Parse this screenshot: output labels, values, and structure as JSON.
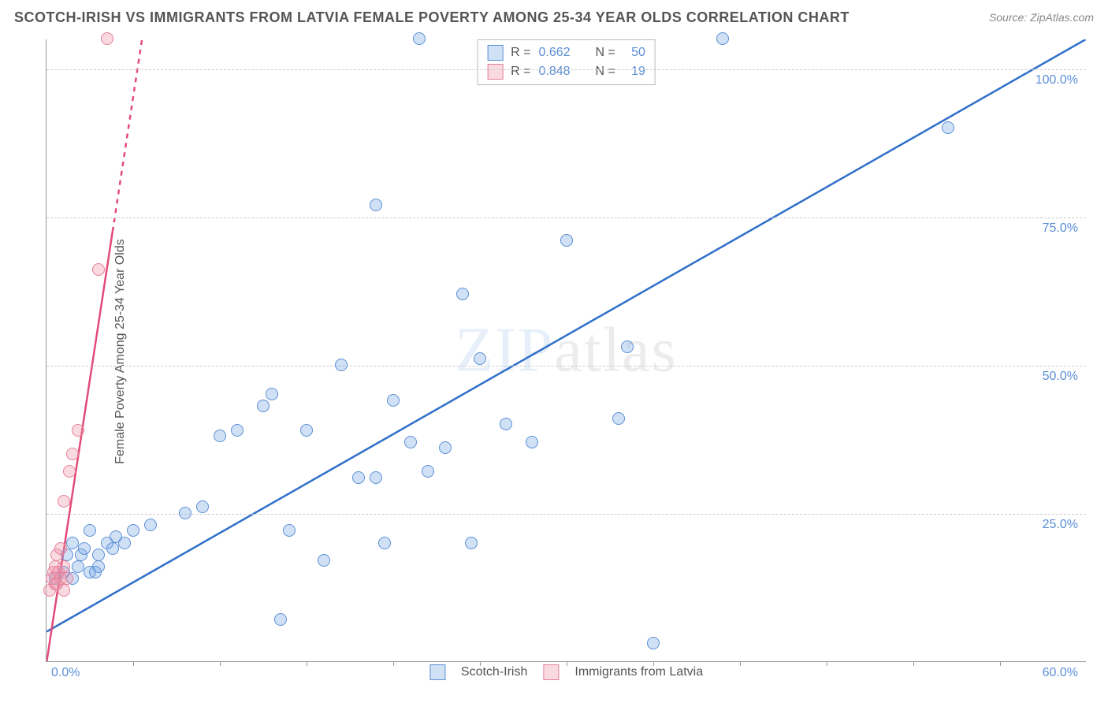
{
  "title": "SCOTCH-IRISH VS IMMIGRANTS FROM LATVIA FEMALE POVERTY AMONG 25-34 YEAR OLDS CORRELATION CHART",
  "source": "Source: ZipAtlas.com",
  "watermark_a": "ZIP",
  "watermark_b": "atlas",
  "y_axis_label": "Female Poverty Among 25-34 Year Olds",
  "chart": {
    "type": "scatter",
    "xlim": [
      0,
      60
    ],
    "ylim": [
      0,
      105
    ],
    "x_axis": {
      "label_left": "0.0%",
      "label_right": "60.0%",
      "tick_positions_pct": [
        8.3,
        16.7,
        25.0,
        33.3,
        41.7,
        50.0,
        58.3,
        66.7,
        75.0,
        83.3,
        91.7
      ]
    },
    "y_gridlines": [
      {
        "value": 25,
        "label": "25.0%"
      },
      {
        "value": 50,
        "label": "50.0%"
      },
      {
        "value": 75,
        "label": "75.0%"
      },
      {
        "value": 100,
        "label": "100.0%"
      }
    ],
    "colors": {
      "blue_fill": "rgba(120,170,230,0.35)",
      "blue_stroke": "#5b8fd6",
      "pink_fill": "rgba(240,150,170,0.35)",
      "pink_stroke": "#e57f9b",
      "trend_blue": "#2f6fc9",
      "trend_pink": "#e24b78",
      "grid": "#cccccc",
      "axis": "#999999",
      "text": "#555555",
      "tick_text": "#5b8fd6"
    },
    "trend_lines": {
      "blue": {
        "x1": 0,
        "y1": 5,
        "x2": 60,
        "y2": 105,
        "solid_to_x": 60
      },
      "pink": {
        "x1": 0,
        "y1": 0,
        "x2": 5.5,
        "y2": 105,
        "solid_to_x": 3.8
      }
    },
    "series": [
      {
        "name": "Scotch-Irish",
        "color": "blue",
        "R": "0.662",
        "N": "50",
        "points": [
          [
            0.5,
            14
          ],
          [
            1.0,
            15
          ],
          [
            1.2,
            18
          ],
          [
            1.5,
            14
          ],
          [
            1.5,
            20
          ],
          [
            1.8,
            16
          ],
          [
            2.0,
            18
          ],
          [
            2.2,
            19
          ],
          [
            2.5,
            22
          ],
          [
            2.5,
            15
          ],
          [
            3.0,
            18
          ],
          [
            3.0,
            16
          ],
          [
            3.5,
            20
          ],
          [
            3.8,
            19
          ],
          [
            4.0,
            21
          ],
          [
            4.5,
            20
          ],
          [
            5.0,
            22
          ],
          [
            6.0,
            23
          ],
          [
            8.0,
            25
          ],
          [
            9.0,
            26
          ],
          [
            10.0,
            38
          ],
          [
            11.0,
            39
          ],
          [
            12.5,
            43
          ],
          [
            13.0,
            45
          ],
          [
            13.5,
            7
          ],
          [
            14.0,
            22
          ],
          [
            15.0,
            39
          ],
          [
            16.0,
            17
          ],
          [
            17.0,
            50
          ],
          [
            18.0,
            31
          ],
          [
            19.0,
            31
          ],
          [
            19.5,
            20
          ],
          [
            20.0,
            44
          ],
          [
            21.0,
            37
          ],
          [
            21.5,
            105
          ],
          [
            22.0,
            32
          ],
          [
            23.0,
            36
          ],
          [
            24.0,
            62
          ],
          [
            24.5,
            20
          ],
          [
            25.0,
            51
          ],
          [
            26.5,
            40
          ],
          [
            28.0,
            37
          ],
          [
            30.0,
            71
          ],
          [
            33.0,
            41
          ],
          [
            35.0,
            3
          ],
          [
            39.0,
            105
          ],
          [
            52.0,
            90
          ],
          [
            33.5,
            53
          ],
          [
            19.0,
            77
          ],
          [
            2.8,
            15
          ]
        ]
      },
      {
        "name": "Immigrants from Latvia",
        "color": "pink",
        "R": "0.848",
        "N": "19",
        "points": [
          [
            0.2,
            12
          ],
          [
            0.3,
            14
          ],
          [
            0.4,
            15
          ],
          [
            0.5,
            13
          ],
          [
            0.5,
            16
          ],
          [
            0.6,
            18
          ],
          [
            0.7,
            15
          ],
          [
            0.8,
            14
          ],
          [
            0.8,
            19
          ],
          [
            1.0,
            16
          ],
          [
            1.0,
            27
          ],
          [
            1.2,
            14
          ],
          [
            1.3,
            32
          ],
          [
            1.5,
            35
          ],
          [
            1.8,
            39
          ],
          [
            3.0,
            66
          ],
          [
            1.0,
            12
          ],
          [
            0.6,
            13
          ],
          [
            3.5,
            105
          ]
        ]
      }
    ]
  },
  "stats_box": {
    "rows": [
      {
        "swatch": "blue",
        "r_label": "R =",
        "r_val": "0.662",
        "n_label": "N =",
        "n_val": "50"
      },
      {
        "swatch": "pink",
        "r_label": "R =",
        "r_val": "0.848",
        "n_label": "N =",
        "n_val": "19"
      }
    ]
  },
  "bottom_legend": [
    {
      "swatch": "blue",
      "label": "Scotch-Irish"
    },
    {
      "swatch": "pink",
      "label": "Immigrants from Latvia"
    }
  ]
}
